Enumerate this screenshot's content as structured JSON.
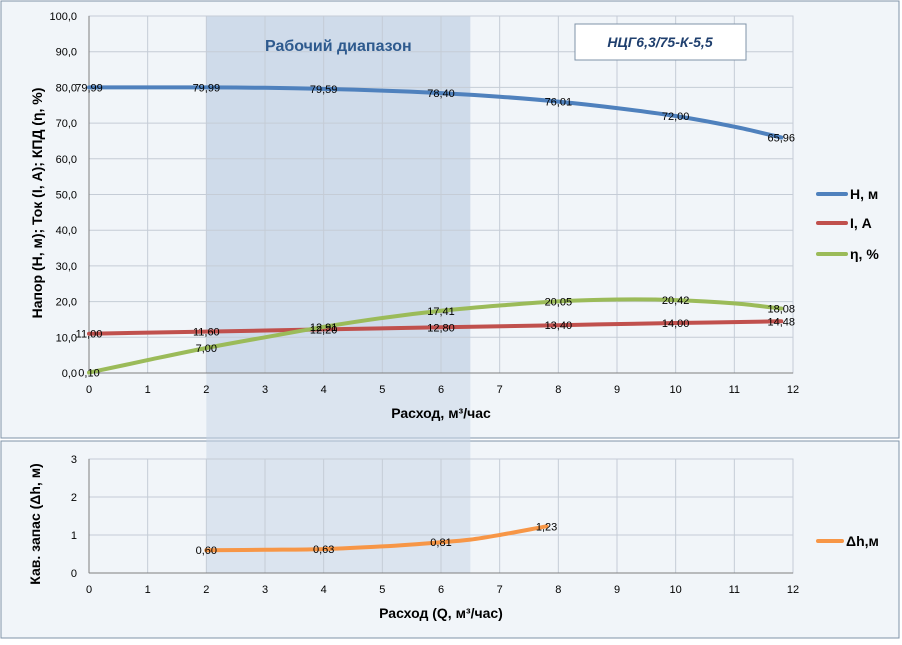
{
  "colors": {
    "panel_bg": "#F1F5F9",
    "panel_border": "#7F93A8",
    "grid": "#C5CCD6",
    "axis": "#808080",
    "band": "#C9D6E8",
    "band_title": "#2E5A8E",
    "head": "#4F81BD",
    "current": "#C0504D",
    "efficiency": "#9BBB59",
    "npsh": "#F79646"
  },
  "chart_data": [
    {
      "type": "line",
      "model_label": "НЦГ6,3/75-К-5,5",
      "band_label": "Рабочий диапазон",
      "band_x": [
        2,
        6.5
      ],
      "xlabel": "Расход, м³/час",
      "ylabel": "Напор (Н, м); Ток  (I, А); КПД (η, %)",
      "xlim": [
        0,
        12
      ],
      "ylim": [
        0,
        100
      ],
      "x_ticks": [
        "0",
        "1",
        "2",
        "3",
        "4",
        "5",
        "6",
        "7",
        "8",
        "9",
        "10",
        "11",
        "12"
      ],
      "y_ticks": [
        "0,0",
        "10,0",
        "20,0",
        "30,0",
        "40,0",
        "50,0",
        "60,0",
        "70,0",
        "80,0",
        "90,0",
        "100,0"
      ],
      "grid": true,
      "legend_position": "right",
      "series": [
        {
          "name": "Н, м",
          "color_key": "head",
          "x": [
            0,
            1,
            2,
            3,
            4,
            5,
            6,
            7,
            8,
            9,
            10,
            11,
            11.8
          ],
          "y": [
            79.99,
            79.99,
            79.99,
            79.9,
            79.59,
            79.1,
            78.4,
            77.4,
            76.01,
            74.2,
            72.0,
            69.0,
            65.96
          ],
          "labels": [
            {
              "x": 0,
              "y": 79.99,
              "text": "79,99"
            },
            {
              "x": 2,
              "y": 79.99,
              "text": "79,99"
            },
            {
              "x": 4,
              "y": 79.59,
              "text": "79,59"
            },
            {
              "x": 6,
              "y": 78.4,
              "text": "78,40"
            },
            {
              "x": 8,
              "y": 76.01,
              "text": "76,01"
            },
            {
              "x": 10,
              "y": 72.0,
              "text": "72,00"
            },
            {
              "x": 11.8,
              "y": 65.96,
              "text": "65,96"
            }
          ]
        },
        {
          "name": "I, А",
          "color_key": "current",
          "x": [
            0,
            2,
            4,
            6,
            8,
            10,
            11.8
          ],
          "y": [
            11.0,
            11.6,
            12.2,
            12.8,
            13.4,
            14.0,
            14.48
          ],
          "labels": [
            {
              "x": 0,
              "y": 11.0,
              "text": "11,00"
            },
            {
              "x": 2,
              "y": 11.6,
              "text": "11,60"
            },
            {
              "x": 4,
              "y": 12.2,
              "text": "12,20"
            },
            {
              "x": 6,
              "y": 12.8,
              "text": "12,80"
            },
            {
              "x": 8,
              "y": 13.4,
              "text": "13,40"
            },
            {
              "x": 10,
              "y": 14.0,
              "text": "14,00"
            },
            {
              "x": 11.8,
              "y": 14.48,
              "text": "14,48"
            }
          ]
        },
        {
          "name": "η, %",
          "color_key": "efficiency",
          "x": [
            0,
            1,
            2,
            3,
            4,
            5,
            6,
            7,
            8,
            9,
            10,
            11,
            11.8
          ],
          "y": [
            0.1,
            3.6,
            7.0,
            10.0,
            12.9,
            15.4,
            17.41,
            18.9,
            20.05,
            20.6,
            20.42,
            19.5,
            18.08
          ],
          "labels": [
            {
              "x": 0,
              "y": 0.1,
              "text": "0,10"
            },
            {
              "x": 2,
              "y": 7.0,
              "text": "7,00"
            },
            {
              "x": 4,
              "y": 12.9,
              "text": "12,91"
            },
            {
              "x": 6,
              "y": 17.41,
              "text": "17,41"
            },
            {
              "x": 8,
              "y": 20.05,
              "text": "20,05"
            },
            {
              "x": 10,
              "y": 20.42,
              "text": "20,42"
            },
            {
              "x": 11.8,
              "y": 18.08,
              "text": "18,08"
            }
          ]
        }
      ]
    },
    {
      "type": "line",
      "xlabel": "Расход (Q, м³/час)",
      "ylabel": "Кав. запас (Δh, м)",
      "xlim": [
        0,
        12
      ],
      "ylim": [
        0,
        3
      ],
      "x_ticks": [
        "0",
        "1",
        "2",
        "3",
        "4",
        "5",
        "6",
        "7",
        "8",
        "9",
        "10",
        "11",
        "12"
      ],
      "y_ticks": [
        "0",
        "1",
        "2",
        "3"
      ],
      "grid": true,
      "legend_position": "right",
      "series": [
        {
          "name": "Δh,м",
          "color_key": "npsh",
          "x": [
            2,
            3,
            4,
            5,
            6,
            6.5,
            7,
            7.8
          ],
          "y": [
            0.6,
            0.61,
            0.63,
            0.7,
            0.81,
            0.88,
            1.0,
            1.23
          ],
          "labels": [
            {
              "x": 2,
              "y": 0.6,
              "text": "0,60"
            },
            {
              "x": 4,
              "y": 0.63,
              "text": "0,63"
            },
            {
              "x": 6,
              "y": 0.81,
              "text": "0,81"
            },
            {
              "x": 7.8,
              "y": 1.23,
              "text": "1,23"
            }
          ]
        }
      ]
    }
  ]
}
